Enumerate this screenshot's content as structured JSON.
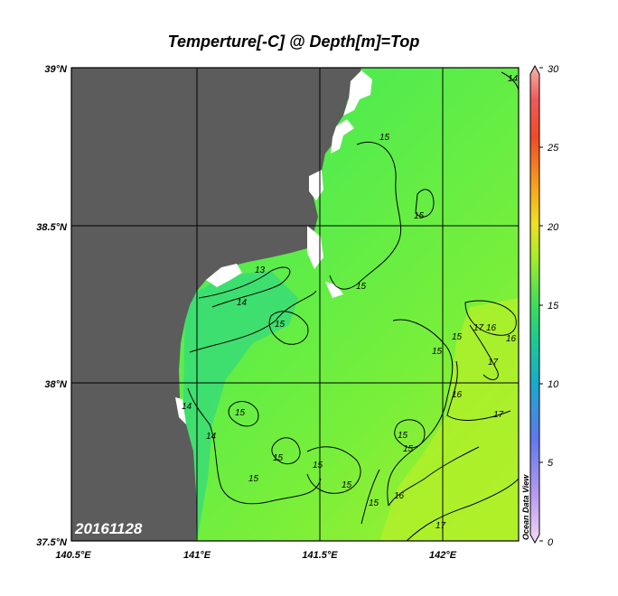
{
  "title": "Temperture[-C] @ Depth[m]=Top",
  "date_stamp": "20161128",
  "watermark": "Ocean Data View",
  "map": {
    "lat_labels": [
      "39°N",
      "38.5°N",
      "38°N",
      "37.5°N"
    ],
    "lon_labels": [
      "140.5°E",
      "141°E",
      "141.5°E",
      "142°E"
    ],
    "lat_range": [
      37.5,
      39.0
    ],
    "lon_range": [
      140.5,
      142.3
    ],
    "land_color": "#5c5c5c",
    "ocean_colors": [
      "#3ee06a",
      "#52ee4c",
      "#7ef038",
      "#a6f028"
    ]
  },
  "contour_labels": [
    "13",
    "14",
    "14",
    "14",
    "14",
    "15",
    "15",
    "15",
    "15",
    "15",
    "15",
    "15",
    "15",
    "15",
    "15",
    "15",
    "15",
    "15",
    "15",
    "16",
    "16",
    "16",
    "16",
    "17",
    "17",
    "17",
    "17"
  ],
  "colorbar": {
    "ticks": [
      "30",
      "25",
      "20",
      "15",
      "10",
      "5",
      "0"
    ],
    "range": [
      0,
      30
    ]
  }
}
